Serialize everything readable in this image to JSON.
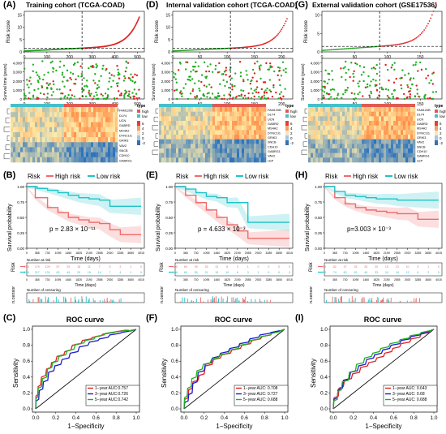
{
  "figure": {
    "panels": [
      {
        "id": "A",
        "label": "(A)",
        "title": "Training cohort (TCGA-COAD)"
      },
      {
        "id": "B",
        "label": "(B)"
      },
      {
        "id": "C",
        "label": "(C)"
      },
      {
        "id": "D",
        "label": "(D)",
        "title": "Internal validation cohort (TCGA-COAD)"
      },
      {
        "id": "E",
        "label": "(E)"
      },
      {
        "id": "F",
        "label": "(F)"
      },
      {
        "id": "G",
        "label": "(G)",
        "title": "External validation cohort (GSE17536)"
      },
      {
        "id": "H",
        "label": "(H)"
      },
      {
        "id": "I",
        "label": "(I)"
      }
    ]
  },
  "chart_data": [
    {
      "panel": "A",
      "type": "scatter",
      "risk_score": {
        "ylabel": "Risk score",
        "xticks": [
          0,
          100,
          200,
          300,
          400,
          500
        ],
        "yticks": [
          0,
          5,
          10,
          15
        ],
        "n": 510,
        "cutoff_index": 255
      },
      "survival": {
        "ylabel": "Survival time (years)",
        "xlabel": "Patients (increasing risk scores)",
        "yticks": [
          "0",
          "1,000",
          "2,000",
          "3,000",
          "4,000"
        ],
        "ylim": [
          0,
          4500
        ]
      },
      "heatmap": {
        "genes": [
          "FAM120B",
          "DLY4",
          "UCN",
          "GABRD",
          "MS4A2",
          "DYNC1I1",
          "GRIK3",
          "VAV2",
          "SNCB",
          "CDH10",
          "GABRG1"
        ],
        "legend": {
          "title": "type",
          "labels": [
            "high",
            "low"
          ],
          "colors": [
            "#e05a50",
            "#46c0c8"
          ],
          "scale": [
            "6",
            "4",
            "2",
            "0",
            "-2"
          ]
        }
      }
    },
    {
      "panel": "D",
      "type": "scatter",
      "risk_score": {
        "ylabel": "Risk score",
        "xticks": [
          0,
          50,
          100,
          150,
          200
        ],
        "yticks": [
          0,
          5,
          10,
          15
        ],
        "n": 212,
        "cutoff_index": 106
      },
      "survival": {
        "ylabel": "Survival time (years)",
        "xlabel": "Patients (increasing risk score)",
        "yticks": [
          "0",
          "1,000",
          "2,000",
          "3,000",
          "4,000"
        ],
        "ylim": [
          0,
          4500
        ]
      },
      "heatmap": {
        "genes": [
          "FAM120B",
          "DLY4",
          "UCN",
          "GABRD",
          "MS4A2",
          "DYNC1I1",
          "GRIK3",
          "SNCB",
          "CDH10",
          "GABRG1",
          "VAV2",
          "LEP"
        ],
        "legend": {
          "title": "type",
          "labels": [
            "high",
            "low"
          ],
          "colors": [
            "#e05a50",
            "#46c0c8"
          ],
          "scale": [
            "6",
            "4",
            "2",
            "0",
            "-2"
          ]
        }
      }
    },
    {
      "panel": "G",
      "type": "scatter",
      "risk_score": {
        "ylabel": "Risk score",
        "xticks": [
          0,
          50,
          100,
          150
        ],
        "yticks": [
          0,
          5,
          10
        ],
        "n": 176,
        "cutoff_index": 88
      },
      "survival": {
        "ylabel": "Survival time (years)",
        "xlabel": "Patients (increasing risk score)",
        "yticks": [
          "0",
          "1,000",
          "2,000",
          "3,000",
          "4,000"
        ],
        "ylim": [
          0,
          4500
        ]
      },
      "heatmap": {
        "genes": [
          "FAM120B",
          "DLY4",
          "UCN",
          "GABRD",
          "MS4A2",
          "DYNC1I1",
          "GRIK3",
          "VAV2",
          "SNCB",
          "CDH10",
          "GABRG1",
          "LEP"
        ],
        "legend": {
          "title": "type",
          "labels": [
            "high",
            "low"
          ],
          "colors": [
            "#e05a50",
            "#46c0c8"
          ],
          "scale": [
            "6",
            "4",
            "2",
            "0",
            "-2"
          ]
        }
      }
    },
    {
      "panel": "B",
      "type": "line",
      "legend": {
        "title": "Risk",
        "labels": [
          "High risk",
          "Low risk"
        ],
        "colors": [
          "#f06a6a",
          "#1fc3c8"
        ]
      },
      "ylabel": "Survival probability",
      "xlabel": "Time (days)",
      "yticks": [
        "0.00",
        "0.25",
        "0.50",
        "0.75",
        "1.00"
      ],
      "xticks": [
        "0",
        "365",
        "730",
        "1095",
        "1460",
        "1825",
        "2190",
        "2555",
        "2920",
        "3285",
        "3650",
        "4015"
      ],
      "pvalue": "p = 2.83 × 10⁻¹¹",
      "series": [
        {
          "name": "High risk",
          "x": [
            0,
            300,
            730,
            1095,
            1460,
            1825,
            2190,
            2555,
            2920,
            3285,
            4015
          ],
          "y": [
            1.0,
            0.82,
            0.66,
            0.58,
            0.5,
            0.46,
            0.42,
            0.4,
            0.3,
            0.22,
            0.22
          ]
        },
        {
          "name": "Low risk",
          "x": [
            0,
            365,
            730,
            1095,
            1460,
            1825,
            2190,
            2555,
            2920,
            3285,
            4015
          ],
          "y": [
            1.0,
            0.97,
            0.94,
            0.9,
            0.86,
            0.82,
            0.8,
            0.78,
            0.68,
            0.68,
            0.68
          ]
        }
      ],
      "risk_table": {
        "title": "Number at risk",
        "rowlabel": "Risk",
        "rows": [
          {
            "name": "High risk",
            "values": [
              "255",
              "179",
              "109",
              "57",
              "29",
              "18",
              "11",
              "7",
              "5",
              "3",
              "1",
              "0"
            ]
          },
          {
            "name": "Low risk",
            "values": [
              "255",
              "217",
              "131",
              "83",
              "49",
              "29",
              "19",
              "14",
              "7",
              "4",
              "1",
              "0"
            ]
          }
        ]
      },
      "censor_table": {
        "title": "Number of censoring",
        "ylabel": "n.censor"
      }
    },
    {
      "panel": "E",
      "type": "line",
      "legend": {
        "title": "Risk",
        "labels": [
          "High risk",
          "Low risk"
        ],
        "colors": [
          "#f06a6a",
          "#1fc3c8"
        ]
      },
      "ylabel": "Survival probability",
      "xlabel": "Time (days)",
      "yticks": [
        "0.00",
        "0.25",
        "0.50",
        "0.75",
        "1.00"
      ],
      "xticks": [
        "0",
        "365",
        "730",
        "1095",
        "1460",
        "1825",
        "2190",
        "2555",
        "2920",
        "3285",
        "3650",
        "4015"
      ],
      "pvalue": "p = 4.633 × 10⁻³",
      "series": [
        {
          "name": "High risk",
          "x": [
            0,
            365,
            730,
            1095,
            1460,
            1825,
            2190,
            2555,
            2920,
            4015
          ],
          "y": [
            1.0,
            0.86,
            0.74,
            0.62,
            0.5,
            0.38,
            0.28,
            0.16,
            0.16,
            0.16
          ]
        },
        {
          "name": "Low risk",
          "x": [
            0,
            365,
            730,
            1095,
            1460,
            1825,
            2190,
            2555,
            2920,
            4015
          ],
          "y": [
            1.0,
            0.96,
            0.9,
            0.84,
            0.82,
            0.74,
            0.74,
            0.42,
            0.42,
            0.42
          ]
        }
      ],
      "risk_table": {
        "title": "Number at risk",
        "rowlabel": "Risk",
        "rows": [
          {
            "name": "High risk",
            "values": [
              "106",
              "69",
              "39",
              "26",
              "13",
              "8",
              "3",
              "1",
              "0",
              "0",
              "0",
              "0"
            ]
          },
          {
            "name": "Low risk",
            "values": [
              "106",
              "84",
              "55",
              "31",
              "15",
              "10",
              "6",
              "3",
              "1",
              "0",
              "0",
              "0"
            ]
          }
        ]
      },
      "censor_table": {
        "title": "Number of censoring",
        "ylabel": "n.censor"
      }
    },
    {
      "panel": "H",
      "type": "line",
      "legend": {
        "title": "Risk",
        "labels": [
          "High risk",
          "Low risk"
        ],
        "colors": [
          "#f06a6a",
          "#1fc3c8"
        ]
      },
      "ylabel": "Survival probability",
      "xlabel": "Time (days)",
      "yticks": [
        "0.00",
        "0.25",
        "0.50",
        "0.75",
        "1.00"
      ],
      "xticks": [
        "0",
        "365",
        "730",
        "1095",
        "1460",
        "1825",
        "2190",
        "2555",
        "2920",
        "3285",
        "3650",
        "4015"
      ],
      "pvalue": "p=3.003 × 10⁻³",
      "series": [
        {
          "name": "High risk",
          "x": [
            0,
            365,
            730,
            1095,
            1460,
            1825,
            2190,
            2555,
            2920,
            3285,
            3650,
            4015
          ],
          "y": [
            1.0,
            0.82,
            0.72,
            0.66,
            0.62,
            0.6,
            0.58,
            0.56,
            0.56,
            0.47,
            0.47,
            0.47
          ]
        },
        {
          "name": "Low risk",
          "x": [
            0,
            365,
            730,
            1095,
            1460,
            1825,
            2190,
            2555,
            2920,
            3285,
            3650,
            4015
          ],
          "y": [
            1.0,
            0.92,
            0.86,
            0.84,
            0.82,
            0.8,
            0.8,
            0.78,
            0.78,
            0.78,
            0.78,
            0.78
          ]
        }
      ],
      "risk_table": {
        "title": "Number at risk",
        "rowlabel": "Risk",
        "rows": [
          {
            "name": "High risk",
            "values": [
              "88",
              "62",
              "47",
              "35",
              "26",
              "20",
              "15",
              "13",
              "10",
              "5",
              "1",
              "0"
            ]
          },
          {
            "name": "Low risk",
            "values": [
              "88",
              "74",
              "62",
              "52",
              "40",
              "33",
              "24",
              "18",
              "13",
              "6",
              "2",
              "0"
            ]
          }
        ]
      },
      "censor_table": {
        "title": "Number of censoring",
        "ylabel": "n.censor"
      }
    },
    {
      "panel": "C",
      "type": "line",
      "title": "ROC curve",
      "xlabel": "1−Specificity",
      "ylabel": "Sensitivity",
      "xticks": [
        "0.0",
        "0.2",
        "0.4",
        "0.6",
        "0.8",
        "1.0"
      ],
      "yticks": [
        "0.0",
        "0.2",
        "0.4",
        "0.6",
        "0.8",
        "1.0"
      ],
      "series": [
        {
          "name": "1−year AUC:0.757",
          "color": "#e02020",
          "x": [
            0,
            0.02,
            0.05,
            0.1,
            0.15,
            0.2,
            0.28,
            0.35,
            0.45,
            0.55,
            0.65,
            0.78,
            0.9,
            1
          ],
          "y": [
            0,
            0.18,
            0.3,
            0.42,
            0.52,
            0.6,
            0.68,
            0.74,
            0.82,
            0.88,
            0.92,
            0.96,
            0.99,
            1
          ]
        },
        {
          "name": "3−year AUC:0.726",
          "color": "#1a1ad0",
          "x": [
            0,
            0.03,
            0.07,
            0.12,
            0.18,
            0.25,
            0.33,
            0.42,
            0.52,
            0.62,
            0.72,
            0.84,
            0.94,
            1
          ],
          "y": [
            0,
            0.12,
            0.25,
            0.36,
            0.48,
            0.56,
            0.64,
            0.72,
            0.8,
            0.86,
            0.9,
            0.95,
            0.98,
            1
          ]
        },
        {
          "name": "5−year AUC:0.742",
          "color": "#22b022",
          "x": [
            0,
            0.02,
            0.06,
            0.11,
            0.16,
            0.22,
            0.3,
            0.38,
            0.48,
            0.58,
            0.68,
            0.8,
            0.92,
            1
          ],
          "y": [
            0,
            0.15,
            0.28,
            0.4,
            0.52,
            0.6,
            0.68,
            0.75,
            0.83,
            0.88,
            0.93,
            0.97,
            0.99,
            1
          ]
        }
      ]
    },
    {
      "panel": "F",
      "type": "line",
      "title": "ROC curve",
      "xlabel": "1−Specificity",
      "ylabel": "Sensitivity",
      "xticks": [
        "0.0",
        "0.2",
        "0.4",
        "0.6",
        "0.8",
        "1.0"
      ],
      "yticks": [
        "0.0",
        "0.2",
        "0.4",
        "0.6",
        "0.8",
        "1.0"
      ],
      "series": [
        {
          "name": "1−year AUC: 0.708",
          "color": "#e02020",
          "x": [
            0,
            0.04,
            0.08,
            0.14,
            0.2,
            0.28,
            0.36,
            0.46,
            0.56,
            0.66,
            0.76,
            0.86,
            0.95,
            1
          ],
          "y": [
            0,
            0.14,
            0.26,
            0.36,
            0.44,
            0.56,
            0.64,
            0.7,
            0.76,
            0.82,
            0.88,
            0.93,
            0.98,
            1
          ]
        },
        {
          "name": "3−year AUC: 0.727",
          "color": "#1a1ad0",
          "x": [
            0,
            0.04,
            0.08,
            0.13,
            0.2,
            0.27,
            0.35,
            0.44,
            0.54,
            0.64,
            0.74,
            0.85,
            0.94,
            1
          ],
          "y": [
            0,
            0.1,
            0.2,
            0.34,
            0.48,
            0.58,
            0.66,
            0.72,
            0.78,
            0.84,
            0.9,
            0.95,
            0.98,
            1
          ]
        },
        {
          "name": "5−year AUC: 0.688",
          "color": "#22b022",
          "x": [
            0,
            0.03,
            0.07,
            0.12,
            0.18,
            0.26,
            0.34,
            0.44,
            0.54,
            0.64,
            0.75,
            0.86,
            0.95,
            1
          ],
          "y": [
            0,
            0.16,
            0.28,
            0.4,
            0.5,
            0.58,
            0.64,
            0.7,
            0.76,
            0.82,
            0.88,
            0.93,
            0.97,
            1
          ]
        }
      ]
    },
    {
      "panel": "I",
      "type": "line",
      "title": "ROC curve",
      "xlabel": "1−Specificity",
      "ylabel": "Sensitivity",
      "xticks": [
        "0.0",
        "0.2",
        "0.4",
        "0.6",
        "0.8",
        "1.0"
      ],
      "yticks": [
        "0.0",
        "0.2",
        "0.4",
        "0.6",
        "0.8",
        "1.0"
      ],
      "series": [
        {
          "name": "1−year AUC: 0.643",
          "color": "#e02020",
          "x": [
            0,
            0.05,
            0.1,
            0.18,
            0.26,
            0.34,
            0.42,
            0.5,
            0.58,
            0.66,
            0.76,
            0.86,
            0.95,
            1
          ],
          "y": [
            0,
            0.16,
            0.28,
            0.38,
            0.46,
            0.54,
            0.6,
            0.66,
            0.72,
            0.78,
            0.84,
            0.9,
            0.96,
            1
          ]
        },
        {
          "name": "3−year AUC: 0.68",
          "color": "#1a1ad0",
          "x": [
            0,
            0.04,
            0.09,
            0.16,
            0.24,
            0.32,
            0.4,
            0.48,
            0.56,
            0.66,
            0.76,
            0.86,
            0.95,
            1
          ],
          "y": [
            0,
            0.14,
            0.26,
            0.38,
            0.48,
            0.56,
            0.64,
            0.7,
            0.76,
            0.82,
            0.88,
            0.93,
            0.97,
            1
          ]
        },
        {
          "name": "5−year AUC: 0.688",
          "color": "#22b022",
          "x": [
            0,
            0.04,
            0.08,
            0.15,
            0.22,
            0.3,
            0.38,
            0.46,
            0.55,
            0.65,
            0.75,
            0.86,
            0.95,
            1
          ],
          "y": [
            0,
            0.12,
            0.24,
            0.36,
            0.48,
            0.58,
            0.66,
            0.72,
            0.78,
            0.84,
            0.89,
            0.94,
            0.98,
            1
          ]
        }
      ]
    }
  ]
}
